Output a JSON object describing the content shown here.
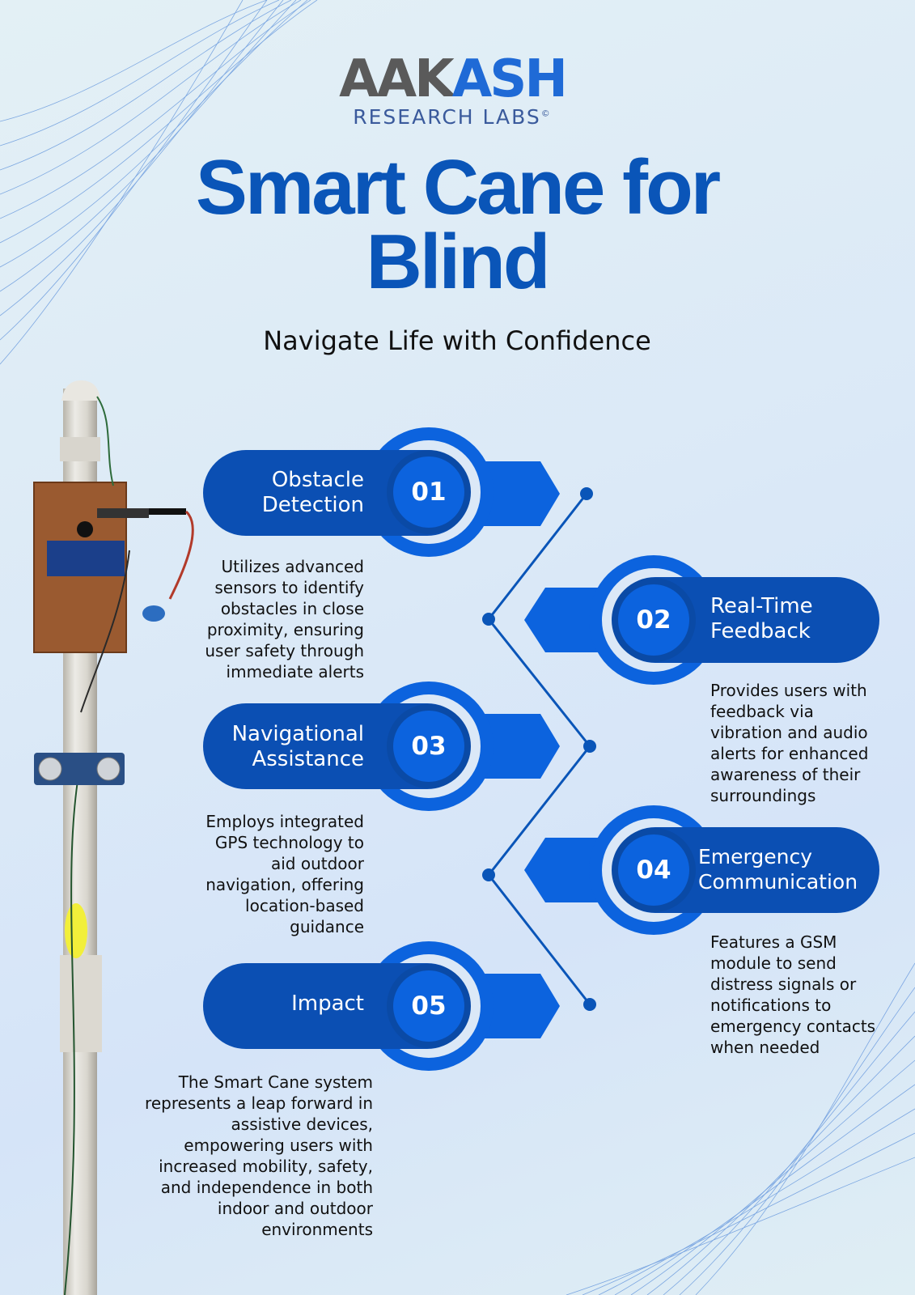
{
  "logo": {
    "wordmark_part1": "AAK",
    "wordmark_part2": "ASH",
    "subtitle": "RESEARCH LABS",
    "copyright": "©"
  },
  "header": {
    "title_line1": "Smart Cane for",
    "title_line2": "Blind",
    "subtitle": "Navigate Life with Confidence"
  },
  "colors": {
    "primary": "#0a55b8",
    "accent": "#1f6ad6",
    "pill_dark": "#0b4fb3",
    "circle_light": "#0c63de",
    "background": "#dfeaf5"
  },
  "image": {
    "subject": "smart cane prototype photo"
  },
  "features": [
    {
      "number": "01",
      "title_line1": "Obstacle",
      "title_line2": "Detection",
      "description": [
        "Utilizes advanced",
        "sensors to identify",
        "obstacles in close",
        "proximity, ensuring",
        "user safety through",
        "immediate alerts"
      ]
    },
    {
      "number": "02",
      "title_line1": "Real-Time",
      "title_line2": "Feedback",
      "description": [
        "Provides users with",
        "feedback via",
        "vibration and audio",
        "alerts for enhanced",
        "awareness of their",
        "surroundings"
      ]
    },
    {
      "number": "03",
      "title_line1": "Navigational",
      "title_line2": "Assistance",
      "description": [
        "Employs integrated",
        "GPS technology to",
        "aid outdoor",
        "navigation, offering",
        "location-based",
        "guidance"
      ]
    },
    {
      "number": "04",
      "title_line1": "Emergency",
      "title_line2": "Communication",
      "description": [
        "Features a GSM",
        "module to send",
        "distress signals or",
        "notifications to",
        "emergency contacts",
        "when needed"
      ]
    },
    {
      "number": "05",
      "title_line1": "Impact",
      "title_line2": "",
      "description": [
        "The Smart Cane system",
        "represents a leap forward in",
        "assistive devices,",
        "empowering users with",
        "increased mobility, safety,",
        "and independence in both",
        "indoor and outdoor",
        "environments"
      ]
    }
  ]
}
